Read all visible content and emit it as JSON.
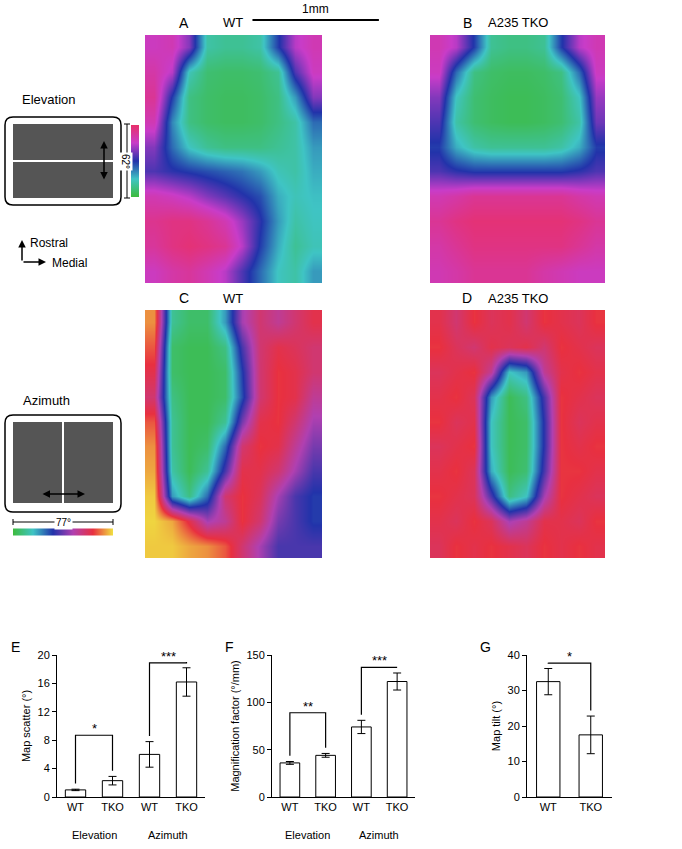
{
  "chart_data": [
    {
      "type": "heatmap",
      "panel_label": "A",
      "title": "WT",
      "tick_labels": false,
      "x": [
        0.07,
        0.21,
        0.35,
        0.49,
        0.63,
        0.77,
        0.91,
        1.05,
        1.19,
        1.33
      ],
      "y": [
        1.9,
        1.7,
        1.5,
        1.3,
        1.1,
        0.9,
        0.7,
        0.5,
        0.3,
        0.1
      ],
      "xlim": [
        0,
        1.4
      ],
      "ylim": [
        0,
        2
      ],
      "zlim": [
        0,
        62
      ],
      "colors": [
        "#3dbb3d",
        "#3fc4c4",
        "#2233aa",
        "#c83cc8",
        "#e8306a"
      ],
      "z": [
        [
          48,
          50,
          40,
          12,
          10,
          10,
          12,
          30,
          45,
          50
        ],
        [
          52,
          45,
          14,
          6,
          5,
          5,
          6,
          10,
          35,
          48
        ],
        [
          55,
          30,
          8,
          5,
          4,
          4,
          5,
          8,
          20,
          40
        ],
        [
          50,
          22,
          8,
          5,
          4,
          4,
          5,
          8,
          12,
          25
        ],
        [
          40,
          25,
          15,
          10,
          8,
          8,
          8,
          10,
          12,
          20
        ],
        [
          35,
          32,
          30,
          28,
          26,
          24,
          20,
          14,
          12,
          18
        ],
        [
          50,
          48,
          45,
          40,
          36,
          32,
          28,
          18,
          14,
          16
        ],
        [
          56,
          58,
          58,
          55,
          50,
          42,
          32,
          20,
          12,
          15
        ],
        [
          54,
          58,
          60,
          58,
          55,
          45,
          30,
          18,
          10,
          14
        ],
        [
          48,
          52,
          54,
          50,
          45,
          35,
          25,
          15,
          12,
          20
        ]
      ]
    },
    {
      "type": "heatmap",
      "panel_label": "B",
      "title": "A235 TKO",
      "tick_labels": false,
      "x": [
        0.07,
        0.21,
        0.35,
        0.49,
        0.63,
        0.77,
        0.91,
        1.05,
        1.19,
        1.33
      ],
      "y": [
        1.9,
        1.7,
        1.5,
        1.3,
        1.1,
        0.9,
        0.7,
        0.5,
        0.3,
        0.1
      ],
      "xlim": [
        0,
        1.4
      ],
      "ylim": [
        0,
        2
      ],
      "zlim": [
        0,
        62
      ],
      "colors": [
        "#3dbb3d",
        "#3fc4c4",
        "#2233aa",
        "#c83cc8",
        "#e8306a"
      ],
      "z": [
        [
          50,
          45,
          30,
          10,
          8,
          8,
          10,
          30,
          45,
          50
        ],
        [
          48,
          25,
          8,
          5,
          4,
          4,
          5,
          8,
          25,
          48
        ],
        [
          40,
          15,
          6,
          4,
          3,
          3,
          4,
          6,
          15,
          42
        ],
        [
          35,
          12,
          6,
          4,
          3,
          3,
          4,
          6,
          12,
          38
        ],
        [
          30,
          18,
          12,
          10,
          10,
          10,
          10,
          12,
          18,
          30
        ],
        [
          35,
          32,
          30,
          30,
          30,
          30,
          30,
          30,
          32,
          35
        ],
        [
          50,
          52,
          55,
          55,
          55,
          55,
          55,
          55,
          52,
          50
        ],
        [
          55,
          58,
          60,
          60,
          60,
          60,
          60,
          60,
          58,
          55
        ],
        [
          52,
          55,
          58,
          58,
          58,
          58,
          58,
          58,
          55,
          52
        ],
        [
          50,
          52,
          55,
          55,
          55,
          55,
          52,
          50,
          48,
          48
        ]
      ]
    },
    {
      "type": "heatmap",
      "panel_label": "C",
      "title": "WT",
      "tick_labels": false,
      "x": [
        0.07,
        0.21,
        0.35,
        0.49,
        0.63,
        0.77,
        0.91,
        1.05,
        1.19,
        1.33
      ],
      "y": [
        1.9,
        1.7,
        1.5,
        1.3,
        1.1,
        0.9,
        0.7,
        0.5,
        0.3,
        0.1
      ],
      "xlim": [
        0,
        1.4
      ],
      "ylim": [
        0,
        2
      ],
      "zlim": [
        0,
        77
      ],
      "colors": [
        "#3dbb3d",
        "#3fc4c4",
        "#2233aa",
        "#b040b0",
        "#e83040",
        "#f0e040"
      ],
      "z": [
        [
          70,
          10,
          5,
          5,
          20,
          45,
          55,
          50,
          55,
          60
        ],
        [
          65,
          5,
          3,
          3,
          8,
          35,
          55,
          60,
          58,
          55
        ],
        [
          60,
          5,
          3,
          3,
          5,
          30,
          55,
          62,
          60,
          55
        ],
        [
          55,
          8,
          3,
          3,
          5,
          28,
          55,
          62,
          60,
          50
        ],
        [
          65,
          10,
          3,
          3,
          10,
          40,
          60,
          62,
          55,
          45
        ],
        [
          70,
          10,
          3,
          5,
          25,
          55,
          62,
          60,
          50,
          40
        ],
        [
          72,
          12,
          3,
          10,
          35,
          60,
          60,
          55,
          45,
          35
        ],
        [
          75,
          20,
          8,
          25,
          55,
          62,
          58,
          45,
          35,
          30
        ],
        [
          76,
          72,
          60,
          45,
          50,
          62,
          55,
          40,
          35,
          30
        ],
        [
          75,
          75,
          72,
          70,
          65,
          55,
          45,
          35,
          35,
          35
        ]
      ]
    },
    {
      "type": "heatmap",
      "panel_label": "D",
      "title": "A235 TKO",
      "tick_labels": false,
      "x": [
        0.07,
        0.21,
        0.35,
        0.49,
        0.63,
        0.77,
        0.91,
        1.05,
        1.19,
        1.33
      ],
      "y": [
        1.9,
        1.7,
        1.5,
        1.3,
        1.1,
        0.9,
        0.7,
        0.5,
        0.3,
        0.1
      ],
      "xlim": [
        0,
        1.4
      ],
      "ylim": [
        0,
        2
      ],
      "zlim": [
        0,
        77
      ],
      "colors": [
        "#3dbb3d",
        "#3fc4c4",
        "#2233aa",
        "#b040b0",
        "#e83040",
        "#f0e040"
      ],
      "z": [
        [
          60,
          55,
          62,
          58,
          60,
          55,
          62,
          60,
          58,
          62
        ],
        [
          62,
          58,
          55,
          60,
          58,
          60,
          55,
          62,
          60,
          58
        ],
        [
          58,
          60,
          62,
          50,
          15,
          20,
          50,
          60,
          62,
          60
        ],
        [
          60,
          62,
          58,
          20,
          3,
          8,
          35,
          62,
          60,
          58
        ],
        [
          62,
          58,
          60,
          15,
          3,
          5,
          32,
          62,
          58,
          60
        ],
        [
          58,
          60,
          62,
          15,
          3,
          5,
          32,
          62,
          60,
          62
        ],
        [
          60,
          62,
          58,
          18,
          3,
          6,
          35,
          62,
          62,
          60
        ],
        [
          62,
          60,
          58,
          35,
          8,
          15,
          45,
          62,
          60,
          58
        ],
        [
          60,
          58,
          62,
          58,
          45,
          50,
          60,
          60,
          58,
          62
        ],
        [
          58,
          62,
          60,
          62,
          60,
          58,
          62,
          60,
          62,
          60
        ]
      ]
    },
    {
      "type": "bar",
      "panel_label": "E",
      "ylabel": "Map scatter (°)",
      "categories": [
        "WT",
        "TKO",
        "WT",
        "TKO"
      ],
      "values": [
        1.0,
        2.3,
        6.0,
        16.2
      ],
      "errors": [
        0.1,
        0.6,
        1.8,
        2.0
      ],
      "groups": [
        "Elevation",
        "Azimuth"
      ],
      "color": "#ffffff",
      "ylim": [
        0,
        20
      ],
      "yticks": [
        0,
        4,
        8,
        12,
        16,
        20
      ],
      "significance": [
        {
          "from": 0,
          "to": 1,
          "text": "*",
          "y": 8.7
        },
        {
          "from": 2,
          "to": 3,
          "text": "***",
          "y": 18.9
        }
      ]
    },
    {
      "type": "bar",
      "panel_label": "F",
      "ylabel": "Magnification factor (°/mm)",
      "categories": [
        "WT",
        "TKO",
        "WT",
        "TKO"
      ],
      "values": [
        36,
        44,
        74,
        122
      ],
      "errors": [
        1.5,
        2,
        7,
        9
      ],
      "groups": [
        "Elevation",
        "Azimuth"
      ],
      "color": "#ffffff",
      "ylim": [
        0,
        150
      ],
      "yticks": [
        0,
        50,
        100,
        150
      ],
      "significance": [
        {
          "from": 0,
          "to": 1,
          "text": "**",
          "y": 89
        },
        {
          "from": 2,
          "to": 3,
          "text": "***",
          "y": 137
        }
      ]
    },
    {
      "type": "bar",
      "panel_label": "G",
      "ylabel": "Map tilt (°)",
      "categories": [
        "WT",
        "TKO"
      ],
      "values": [
        32.5,
        17.5
      ],
      "errors": [
        3.7,
        5.3
      ],
      "color": "#ffffff",
      "ylim": [
        0,
        40
      ],
      "yticks": [
        0,
        10,
        20,
        30,
        40
      ],
      "significance": [
        {
          "from": 0,
          "to": 1,
          "text": "*",
          "y": 37.7
        }
      ]
    }
  ],
  "schematics": [
    {
      "label": "Elevation",
      "range_label": "62°"
    },
    {
      "label": "Azimuth",
      "range_label": "77°"
    }
  ],
  "orientation_key": {
    "up": "Rostral",
    "right": "Medial"
  },
  "scale_bar": {
    "label": "1mm",
    "length": 1
  }
}
